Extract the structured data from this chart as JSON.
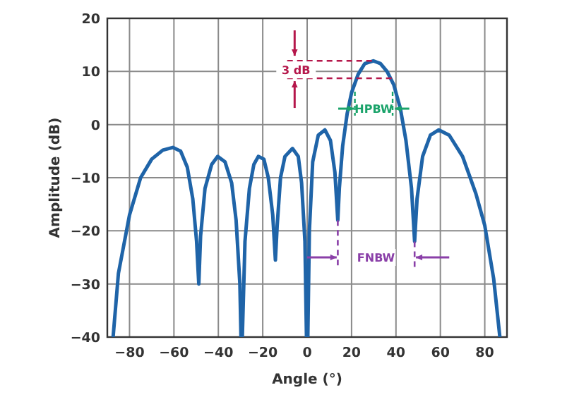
{
  "chart_data": {
    "type": "line",
    "xlabel": "Angle (°)",
    "ylabel": "Amplitude (dB)",
    "xlim": [
      -90,
      90
    ],
    "ylim": [
      -40,
      20
    ],
    "xticks": [
      -80,
      -60,
      -40,
      -20,
      0,
      20,
      40,
      60,
      80
    ],
    "yticks": [
      -40,
      -30,
      -20,
      -10,
      0,
      10,
      20
    ],
    "grid": true,
    "marker": "none",
    "line_style": "solid",
    "series": [
      {
        "color": "#1f64a8",
        "x": [
          -87.4,
          -85,
          -80,
          -75,
          -70,
          -65,
          -60.5,
          -57,
          -54,
          -51.5,
          -49.8,
          -48.8,
          -48,
          -46,
          -43,
          -40.3,
          -37,
          -34,
          -32,
          -30.3,
          -29.8,
          -29.2,
          -28,
          -26,
          -24,
          -22,
          -19.5,
          -17.5,
          -15.5,
          -14.3,
          -13.5,
          -12,
          -10,
          -6.6,
          -4,
          -2.5,
          -1,
          -0.3,
          0.3,
          1,
          2.5,
          5,
          8,
          10.5,
          12.5,
          13.8,
          14.5,
          16,
          18,
          20,
          23,
          26,
          29.8,
          33,
          36,
          39,
          42,
          44.5,
          47,
          48.4,
          49.5,
          52,
          55.5,
          59.3,
          64,
          70,
          76,
          80,
          84,
          86.8
        ],
        "values": [
          -40,
          -28,
          -17,
          -10,
          -6.5,
          -4.8,
          -4.3,
          -5,
          -8,
          -14,
          -22,
          -30,
          -21,
          -12,
          -7.5,
          -6,
          -7,
          -11,
          -18,
          -30,
          -40,
          -40,
          -22,
          -12,
          -7.5,
          -6,
          -6.5,
          -10,
          -17,
          -25.5,
          -19,
          -10,
          -6,
          -4.5,
          -6,
          -11,
          -22,
          -40,
          -40,
          -20,
          -7,
          -2,
          -1,
          -3,
          -9,
          -18,
          -12,
          -4,
          2,
          6,
          9.5,
          11.5,
          12,
          11.5,
          10,
          7.5,
          3,
          -3,
          -12,
          -22,
          -14,
          -6,
          -2,
          -1,
          -2,
          -6,
          -13,
          -19,
          -29,
          -40
        ]
      }
    ],
    "annotations": [
      {
        "text": "3 dB",
        "x": 29.8,
        "y": 12
      },
      "HPBW",
      "FNBW"
    ]
  }
}
